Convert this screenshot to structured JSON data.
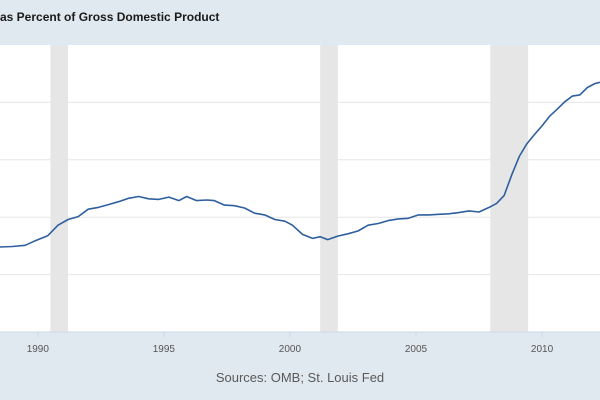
{
  "chart_data": {
    "type": "line",
    "title": "as Percent of Gross Domestic Product",
    "source": "Sources: OMB; St. Louis Fed",
    "xlim": [
      1988.5,
      2012.3
    ],
    "ylim": [
      20,
      70
    ],
    "ygrid": [
      30,
      40,
      50,
      60
    ],
    "xticks": [
      {
        "value": 1990,
        "label": "1990"
      },
      {
        "value": 1995,
        "label": "1995"
      },
      {
        "value": 2000,
        "label": "2000"
      },
      {
        "value": 2005,
        "label": "2005"
      },
      {
        "value": 2010,
        "label": "2010"
      }
    ],
    "recessions": [
      {
        "start": 1990.5,
        "end": 1991.2
      },
      {
        "start": 2001.2,
        "end": 2001.9
      },
      {
        "start": 2007.95,
        "end": 2009.45
      }
    ],
    "series": [
      {
        "color": "#2f5f9e",
        "points": [
          [
            1988.5,
            34.8
          ],
          [
            1989.0,
            34.9
          ],
          [
            1989.5,
            35.1
          ],
          [
            1989.9,
            35.9
          ],
          [
            1990.4,
            36.8
          ],
          [
            1990.8,
            38.6
          ],
          [
            1991.2,
            39.6
          ],
          [
            1991.6,
            40.1
          ],
          [
            1992.0,
            41.4
          ],
          [
            1992.4,
            41.7
          ],
          [
            1992.8,
            42.2
          ],
          [
            1993.2,
            42.7
          ],
          [
            1993.6,
            43.3
          ],
          [
            1994.0,
            43.6
          ],
          [
            1994.4,
            43.2
          ],
          [
            1994.8,
            43.1
          ],
          [
            1995.2,
            43.5
          ],
          [
            1995.6,
            42.9
          ],
          [
            1995.9,
            43.6
          ],
          [
            1996.3,
            42.9
          ],
          [
            1996.7,
            43.0
          ],
          [
            1997.0,
            42.9
          ],
          [
            1997.4,
            42.1
          ],
          [
            1997.8,
            42.0
          ],
          [
            1998.2,
            41.6
          ],
          [
            1998.6,
            40.7
          ],
          [
            1999.0,
            40.4
          ],
          [
            1999.4,
            39.6
          ],
          [
            1999.8,
            39.3
          ],
          [
            2000.1,
            38.6
          ],
          [
            2000.5,
            37.0
          ],
          [
            2000.9,
            36.3
          ],
          [
            2001.2,
            36.6
          ],
          [
            2001.5,
            36.1
          ],
          [
            2001.9,
            36.7
          ],
          [
            2002.3,
            37.1
          ],
          [
            2002.7,
            37.6
          ],
          [
            2003.1,
            38.6
          ],
          [
            2003.5,
            38.9
          ],
          [
            2003.9,
            39.4
          ],
          [
            2004.3,
            39.7
          ],
          [
            2004.7,
            39.8
          ],
          [
            2005.1,
            40.4
          ],
          [
            2005.5,
            40.4
          ],
          [
            2005.9,
            40.5
          ],
          [
            2006.3,
            40.6
          ],
          [
            2006.7,
            40.8
          ],
          [
            2007.1,
            41.1
          ],
          [
            2007.5,
            40.9
          ],
          [
            2007.9,
            41.7
          ],
          [
            2008.2,
            42.4
          ],
          [
            2008.5,
            43.8
          ],
          [
            2008.8,
            47.4
          ],
          [
            2009.1,
            50.6
          ],
          [
            2009.4,
            52.8
          ],
          [
            2009.7,
            54.4
          ],
          [
            2010.0,
            55.9
          ],
          [
            2010.3,
            57.6
          ],
          [
            2010.6,
            58.8
          ],
          [
            2010.9,
            60.1
          ],
          [
            2011.2,
            61.1
          ],
          [
            2011.5,
            61.3
          ],
          [
            2011.8,
            62.6
          ],
          [
            2012.1,
            63.3
          ],
          [
            2012.3,
            63.5
          ]
        ]
      }
    ]
  }
}
